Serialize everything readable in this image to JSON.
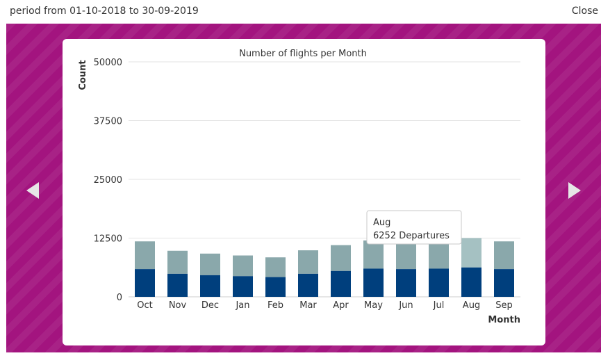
{
  "header": {
    "period": "period from 01-10-2018 to 30-09-2019",
    "close_label": "Close"
  },
  "nav": {
    "prev_icon": "triangle-left-icon",
    "next_icon": "triangle-right-icon"
  },
  "colors": {
    "backdrop": "#a3147f",
    "arrivals_bar": "#8aa8ab",
    "departures_bar": "#003f7d",
    "highlight_bar": "#a5c1c2"
  },
  "chart_data": {
    "type": "bar",
    "stacked": true,
    "title": "Number of flights per Month",
    "xlabel": "Month",
    "ylabel": "Count",
    "ylim": [
      0,
      50000
    ],
    "yticks": [
      0,
      12500,
      25000,
      37500,
      50000
    ],
    "grid": true,
    "categories": [
      "Oct",
      "Nov",
      "Dec",
      "Jan",
      "Feb",
      "Mar",
      "Apr",
      "May",
      "Jun",
      "Jul",
      "Aug",
      "Sep"
    ],
    "series": [
      {
        "name": "Departures",
        "color": "#003f7d",
        "values": [
          5900,
          4900,
          4600,
          4400,
          4200,
          4900,
          5500,
          6000,
          5900,
          6000,
          6252,
          5900
        ]
      },
      {
        "color": "#8aa8ab",
        "values": [
          5900,
          4900,
          4600,
          4400,
          4200,
          5000,
          5500,
          6000,
          5900,
          6000,
          6250,
          5900
        ]
      }
    ],
    "tooltip": {
      "category": "Aug",
      "text": "6252 Departures"
    }
  }
}
